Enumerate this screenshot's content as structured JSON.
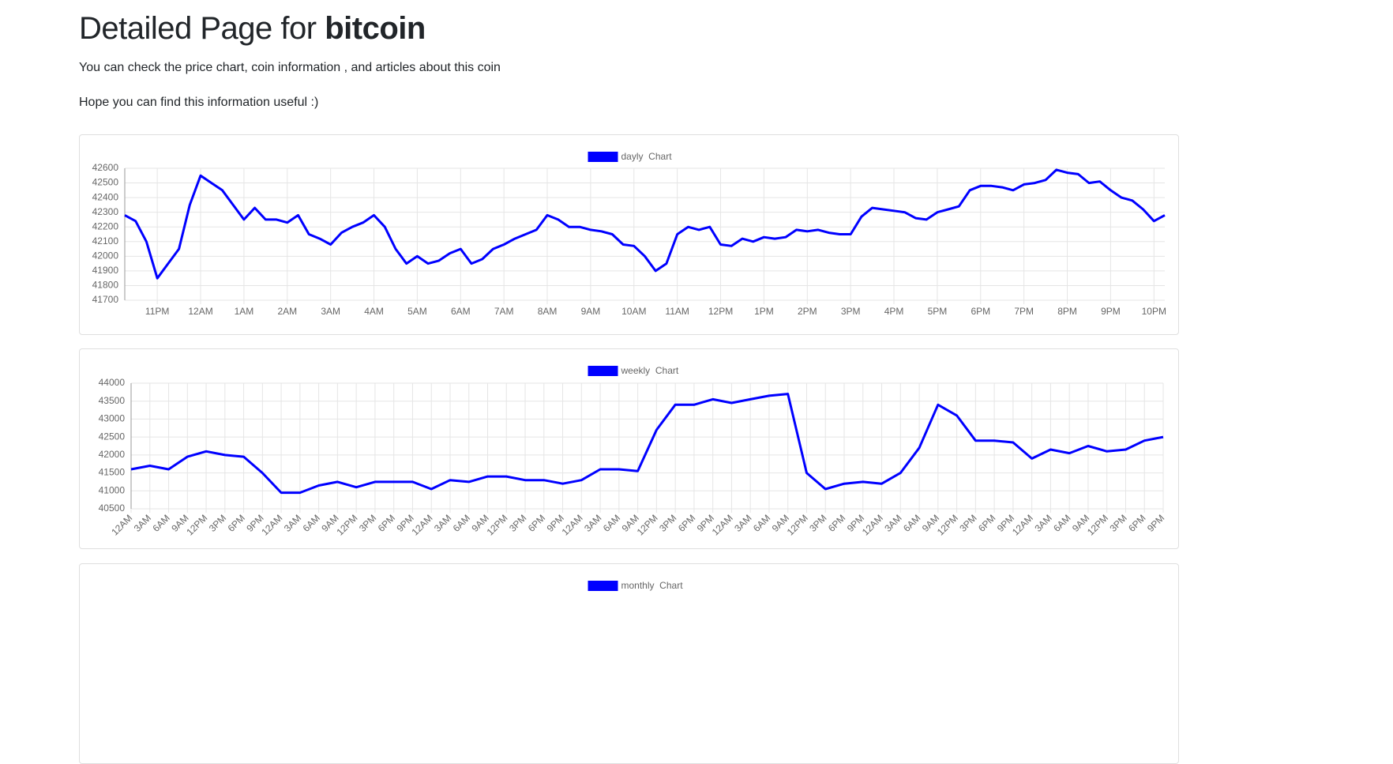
{
  "header": {
    "title_prefix": "Detailed Page for ",
    "title_coin": "bitcoin",
    "intro": "You can check the price chart, coin information , and articles about this coin",
    "note": "Hope you can find this information useful :)"
  },
  "chart_data": [
    {
      "type": "line",
      "grid": true,
      "categories": [
        null,
        null,
        null,
        "11PM",
        null,
        null,
        null,
        "12AM",
        null,
        null,
        null,
        "1AM",
        null,
        null,
        null,
        "2AM",
        null,
        null,
        null,
        "3AM",
        null,
        null,
        null,
        "4AM",
        null,
        null,
        null,
        "5AM",
        null,
        null,
        null,
        "6AM",
        null,
        null,
        null,
        "7AM",
        null,
        null,
        null,
        "8AM",
        null,
        null,
        null,
        "9AM",
        null,
        null,
        null,
        "10AM",
        null,
        null,
        null,
        "11AM",
        null,
        null,
        null,
        "12PM",
        null,
        null,
        null,
        "1PM",
        null,
        null,
        null,
        "2PM",
        null,
        null,
        null,
        "3PM",
        null,
        null,
        null,
        "4PM",
        null,
        null,
        null,
        "5PM",
        null,
        null,
        null,
        "6PM",
        null,
        null,
        null,
        "7PM",
        null,
        null,
        null,
        "8PM",
        null,
        null,
        null,
        "9PM",
        null,
        null,
        null,
        "10PM",
        null
      ],
      "series": [
        {
          "name": "dayly  Chart",
          "color": "#0000ff",
          "values": [
            42280,
            42240,
            42100,
            41850,
            41950,
            42050,
            42350,
            42550,
            42500,
            42450,
            42350,
            42250,
            42330,
            42250,
            42250,
            42230,
            42280,
            42150,
            42120,
            42080,
            42160,
            42200,
            42230,
            42280,
            42200,
            42050,
            41950,
            42000,
            41950,
            41970,
            42020,
            42050,
            41950,
            41980,
            42050,
            42080,
            42120,
            42150,
            42180,
            42280,
            42250,
            42200,
            42200,
            42180,
            42170,
            42150,
            42080,
            42070,
            42000,
            41900,
            41950,
            42150,
            42200,
            42180,
            42200,
            42080,
            42070,
            42120,
            42100,
            42130,
            42120,
            42130,
            42180,
            42170,
            42180,
            42160,
            42150,
            42150,
            42270,
            42330,
            42320,
            42310,
            42300,
            42260,
            42250,
            42300,
            42320,
            42340,
            42450,
            42480,
            42480,
            42470,
            42450,
            42490,
            42500,
            42520,
            42590,
            42570,
            42560,
            42500,
            42510,
            42450,
            42400,
            42380,
            42320,
            42240,
            42280
          ]
        }
      ],
      "ylim": [
        41700,
        42600
      ],
      "yticks": [
        41700,
        41800,
        41900,
        42000,
        42100,
        42200,
        42300,
        42400,
        42500,
        42600
      ]
    },
    {
      "type": "line",
      "grid": true,
      "categories": [
        "12AM",
        "3AM",
        "6AM",
        "9AM",
        "12PM",
        "3PM",
        "6PM",
        "9PM",
        "12AM",
        "3AM",
        "6AM",
        "9AM",
        "12PM",
        "3PM",
        "6PM",
        "9PM",
        "12AM",
        "3AM",
        "6AM",
        "9AM",
        "12PM",
        "3PM",
        "6PM",
        "9PM",
        "12AM",
        "3AM",
        "6AM",
        "9AM",
        "12PM",
        "3PM",
        "6PM",
        "9PM",
        "12AM",
        "3AM",
        "6AM",
        "9AM",
        "12PM",
        "3PM",
        "6PM",
        "9PM",
        "12AM",
        "3AM",
        "6AM",
        "9AM",
        "12PM",
        "3PM",
        "6PM",
        "9PM",
        "12AM",
        "3AM",
        "6AM",
        "9AM",
        "12PM",
        "3PM",
        "6PM",
        "9PM"
      ],
      "series": [
        {
          "name": "weekly  Chart",
          "color": "#0000ff",
          "values": [
            41600,
            41700,
            41600,
            41950,
            42100,
            42000,
            41950,
            41500,
            40950,
            40950,
            41150,
            41250,
            41100,
            41250,
            41250,
            41250,
            41050,
            41300,
            41250,
            41400,
            41400,
            41300,
            41300,
            41200,
            41300,
            41600,
            41600,
            41550,
            42700,
            43400,
            43400,
            43550,
            43450,
            43550,
            43650,
            43700,
            41500,
            41050,
            41200,
            41250,
            41200,
            41500,
            42200,
            43400,
            43100,
            42400,
            42400,
            42350,
            41900,
            42150,
            42050,
            42250,
            42100,
            42150,
            42400,
            42500
          ]
        }
      ],
      "ylim": [
        40500,
        44000
      ],
      "yticks": [
        40500,
        41000,
        41500,
        42000,
        42500,
        43000,
        43500,
        44000
      ]
    },
    {
      "type": "line",
      "categories": [],
      "series": [
        {
          "name": "monthly  Chart",
          "color": "#0000ff",
          "values": []
        }
      ]
    }
  ]
}
